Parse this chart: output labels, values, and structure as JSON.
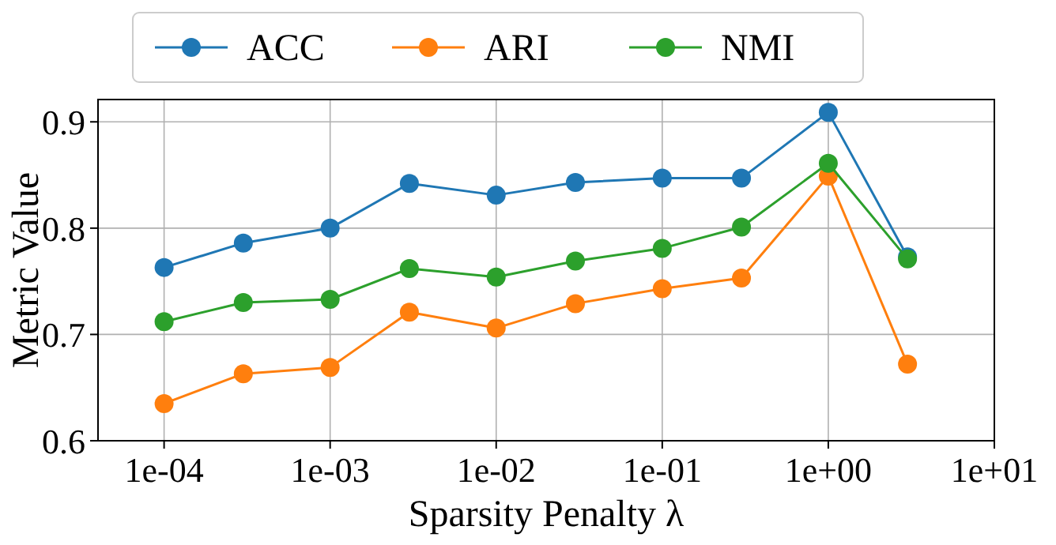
{
  "chart_data": {
    "type": "line",
    "xlabel": "Sparsity Penalty λ",
    "ylabel": "Metric Value",
    "x": [
      0.0001,
      0.0003,
      0.001,
      0.003,
      0.01,
      0.03,
      0.1,
      0.3,
      1,
      3
    ],
    "series": [
      {
        "name": "ACC",
        "color": "#1f77b4",
        "values": [
          0.763,
          0.786,
          0.8,
          0.842,
          0.831,
          0.843,
          0.847,
          0.847,
          0.909,
          0.773
        ]
      },
      {
        "name": "ARI",
        "color": "#ff7f0e",
        "values": [
          0.635,
          0.663,
          0.669,
          0.721,
          0.706,
          0.729,
          0.743,
          0.753,
          0.849,
          0.672
        ]
      },
      {
        "name": "NMI",
        "color": "#2ca02c",
        "values": [
          0.712,
          0.73,
          0.733,
          0.762,
          0.754,
          0.769,
          0.781,
          0.801,
          0.861,
          0.771
        ]
      }
    ],
    "log": "x",
    "xlim": [
      4e-05,
      10
    ],
    "ylim": [
      0.6,
      0.921
    ],
    "xticks": [
      {
        "value": 0.0001,
        "label": "1e-04"
      },
      {
        "value": 0.001,
        "label": "1e-03"
      },
      {
        "value": 0.01,
        "label": "1e-02"
      },
      {
        "value": 0.1,
        "label": "1e-01"
      },
      {
        "value": 1,
        "label": "1e+00"
      },
      {
        "value": 10,
        "label": "1e+01"
      }
    ],
    "yticks": [
      {
        "value": 0.6,
        "label": "0.6"
      },
      {
        "value": 0.7,
        "label": "0.7"
      },
      {
        "value": 0.8,
        "label": "0.8"
      },
      {
        "value": 0.9,
        "label": "0.9"
      }
    ],
    "grid": true,
    "legend": "top",
    "marker": "circle",
    "line_style": "solid"
  }
}
